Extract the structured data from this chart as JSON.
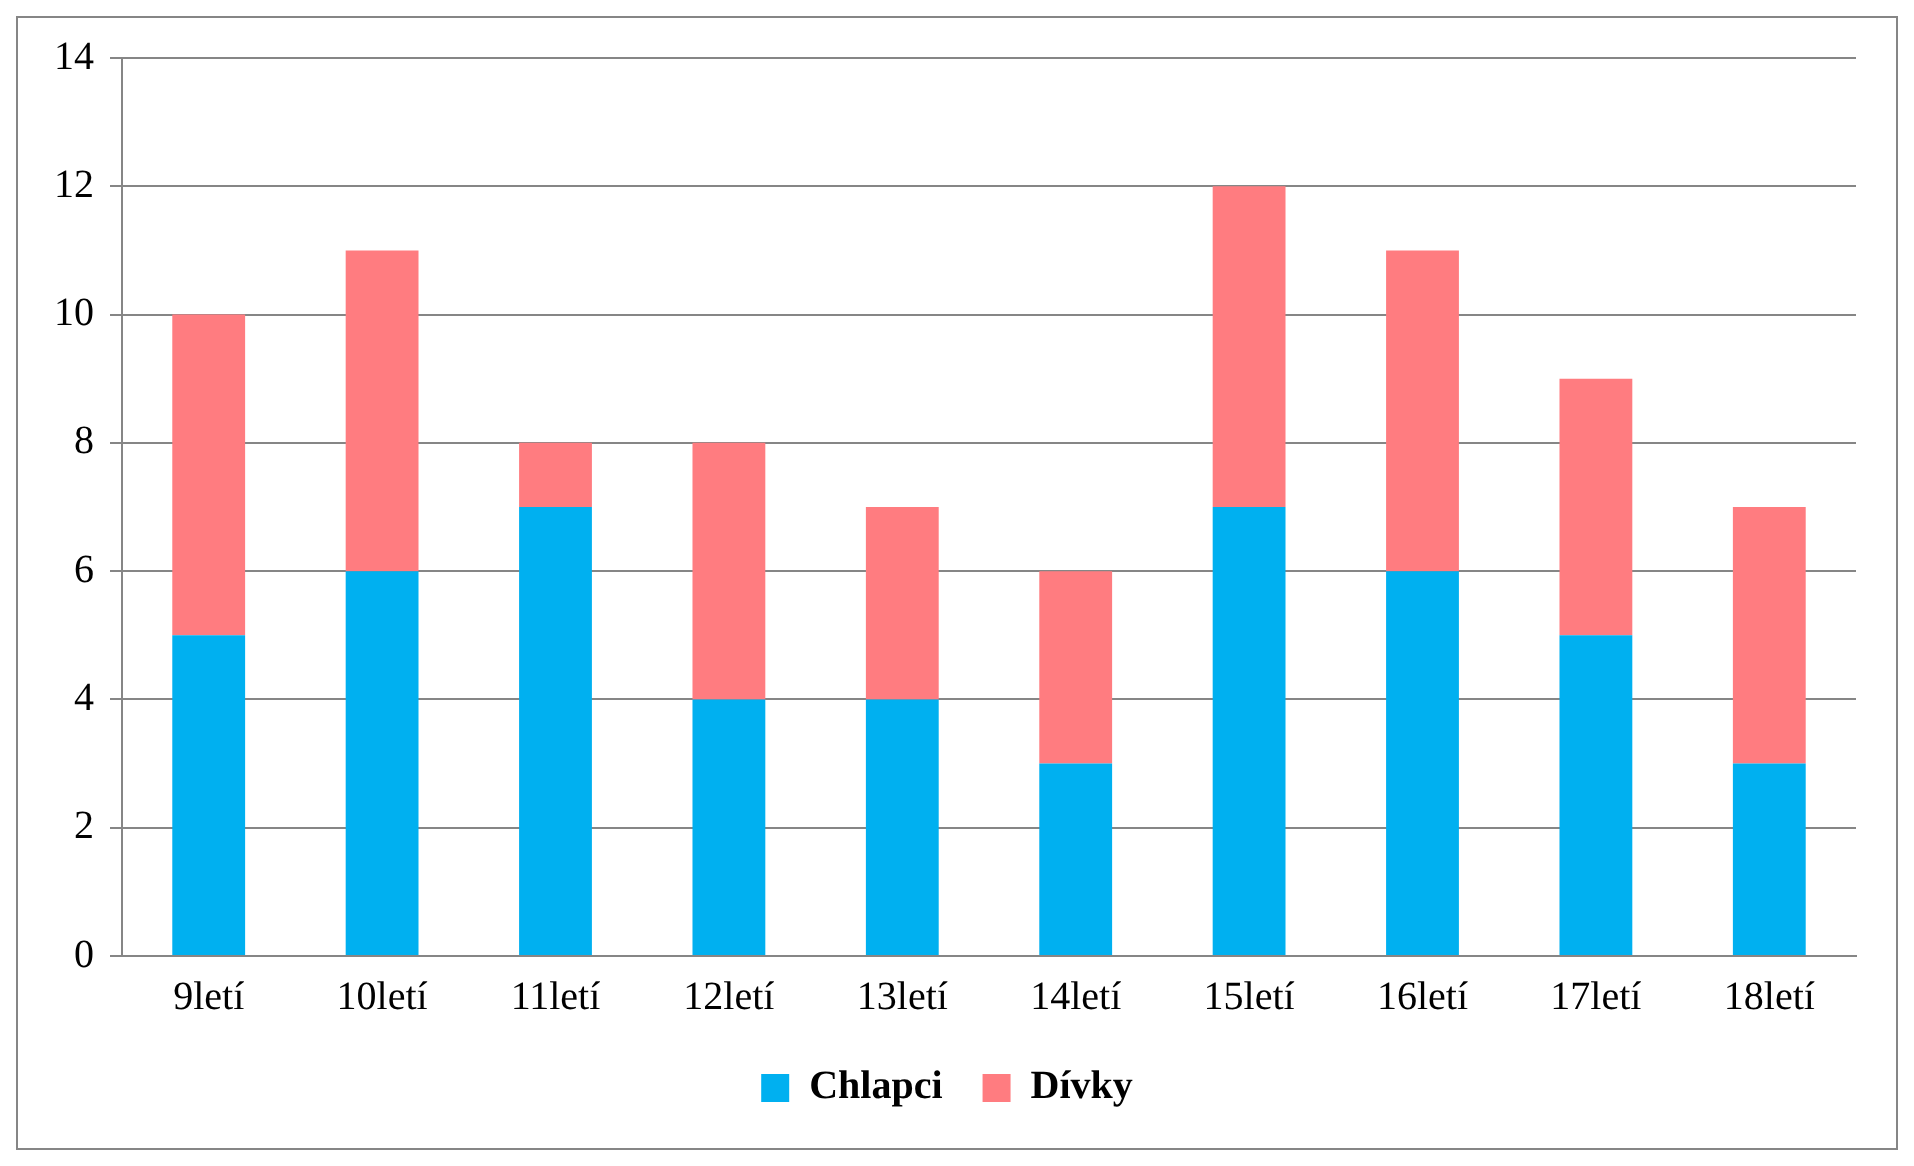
{
  "chart_data": {
    "type": "bar",
    "stacked": true,
    "categories": [
      "9letí",
      "10letí",
      "11letí",
      "12letí",
      "13letí",
      "14letí",
      "15letí",
      "16letí",
      "17letí",
      "18letí"
    ],
    "series": [
      {
        "name": "Chlapci",
        "color": "#00b0f0",
        "values": [
          5,
          6,
          7,
          4,
          4,
          3,
          7,
          6,
          5,
          3
        ]
      },
      {
        "name": "Dívky",
        "color": "#ff7c80",
        "values": [
          5,
          5,
          1,
          4,
          3,
          3,
          5,
          5,
          4,
          4
        ]
      }
    ],
    "ylim": [
      0,
      14
    ],
    "yticks": [
      0,
      2,
      4,
      6,
      8,
      10,
      12,
      14
    ],
    "grid": "y",
    "legend": "bottom"
  }
}
